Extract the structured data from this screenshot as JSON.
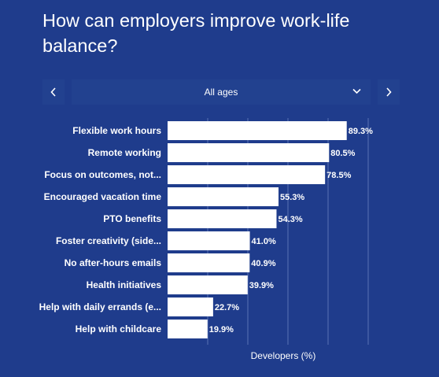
{
  "title": "How can employers improve work-life balance?",
  "filter": {
    "selected": "All ages",
    "prev_icon": "chevron-left-icon",
    "next_icon": "chevron-right-icon",
    "caret_icon": "chevron-down-icon"
  },
  "colors": {
    "background": "#1f3c8c",
    "bar": "#ffffff",
    "text": "#ffffff",
    "grid": "#5a72b4"
  },
  "chart_data": {
    "type": "bar",
    "orientation": "horizontal",
    "categories": [
      "Flexible work hours",
      "Remote working",
      "Focus on outcomes, not...",
      "Encouraged vacation time",
      "PTO benefits",
      "Foster creativity (side...",
      "No after-hours emails",
      "Health initiatives",
      "Help with daily errands (e...",
      "Help with childcare"
    ],
    "values": [
      89.3,
      80.5,
      78.5,
      55.3,
      54.3,
      41.0,
      40.9,
      39.9,
      22.7,
      19.9
    ],
    "value_labels": [
      "89.3%",
      "80.5%",
      "78.5%",
      "55.3%",
      "54.3%",
      "41.0%",
      "40.9%",
      "39.9%",
      "22.7%",
      "19.9%"
    ],
    "xlabel": "Developers (%)",
    "ylabel": "",
    "xlim": [
      0,
      100
    ],
    "grid": true,
    "grid_step": 20
  }
}
